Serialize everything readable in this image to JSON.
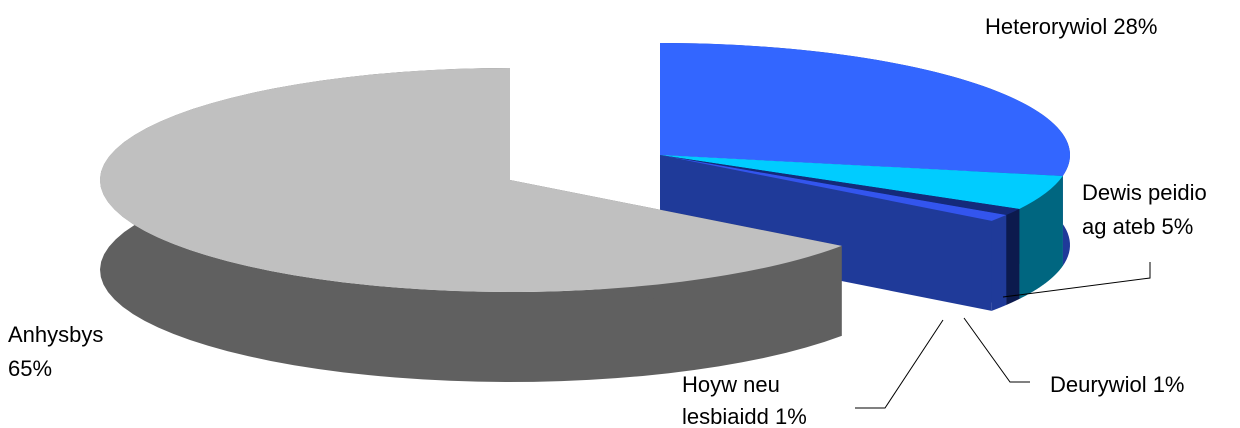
{
  "chart_data": {
    "type": "pie",
    "title": "",
    "slices": [
      {
        "label": "Heterorywiol 28%",
        "value": 28,
        "color_top": "#3366ff",
        "color_side": "#1f3a99"
      },
      {
        "label": "Dewis peidio ag ateb 5%",
        "value": 5,
        "color_top": "#00ccff",
        "color_side": "#006680"
      },
      {
        "label": "Deurywiol 1%",
        "value": 1,
        "color_top": "#142a7a",
        "color_side": "#0c1a4d"
      },
      {
        "label": "Hoyw neu lesbiaidd 1%",
        "value": 1,
        "color_top": "#3355ee",
        "color_side": "#1f3a99"
      },
      {
        "label": "Anhysbys 65%",
        "value": 65,
        "color_top": "#c0c0c0",
        "color_side": "#606060"
      }
    ],
    "legend": "none"
  }
}
